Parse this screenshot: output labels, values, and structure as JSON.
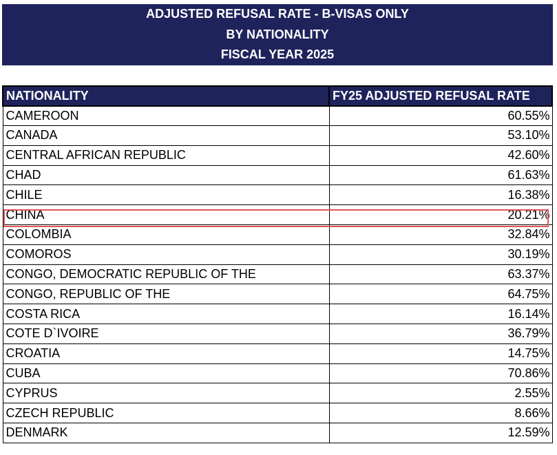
{
  "header": {
    "title_lines": [
      "ADJUSTED REFUSAL RATE - B-VISAS ONLY",
      "BY NATIONALITY",
      "FISCAL YEAR 2025"
    ]
  },
  "table": {
    "columns": [
      "NATIONALITY",
      "FY25 ADJUSTED REFUSAL RATE"
    ],
    "rows": [
      [
        "CAMEROON",
        "60.55%"
      ],
      [
        "CANADA",
        "53.10%"
      ],
      [
        "CENTRAL AFRICAN REPUBLIC",
        "42.60%"
      ],
      [
        "CHAD",
        "61.63%"
      ],
      [
        "CHILE",
        "16.38%"
      ],
      [
        "CHINA",
        "20.21%"
      ],
      [
        "COLOMBIA",
        "32.84%"
      ],
      [
        "COMOROS",
        "30.19%"
      ],
      [
        "CONGO, DEMOCRATIC REPUBLIC OF THE",
        "63.37%"
      ],
      [
        "CONGO, REPUBLIC OF THE",
        "64.75%"
      ],
      [
        "COSTA RICA",
        "16.14%"
      ],
      [
        "COTE D`IVOIRE",
        "36.79%"
      ],
      [
        "CROATIA",
        "14.75%"
      ],
      [
        "CUBA",
        "70.86%"
      ],
      [
        "CYPRUS",
        "2.55%"
      ],
      [
        "CZECH REPUBLIC",
        "8.66%"
      ],
      [
        "DENMARK",
        "12.59%"
      ]
    ]
  }
}
